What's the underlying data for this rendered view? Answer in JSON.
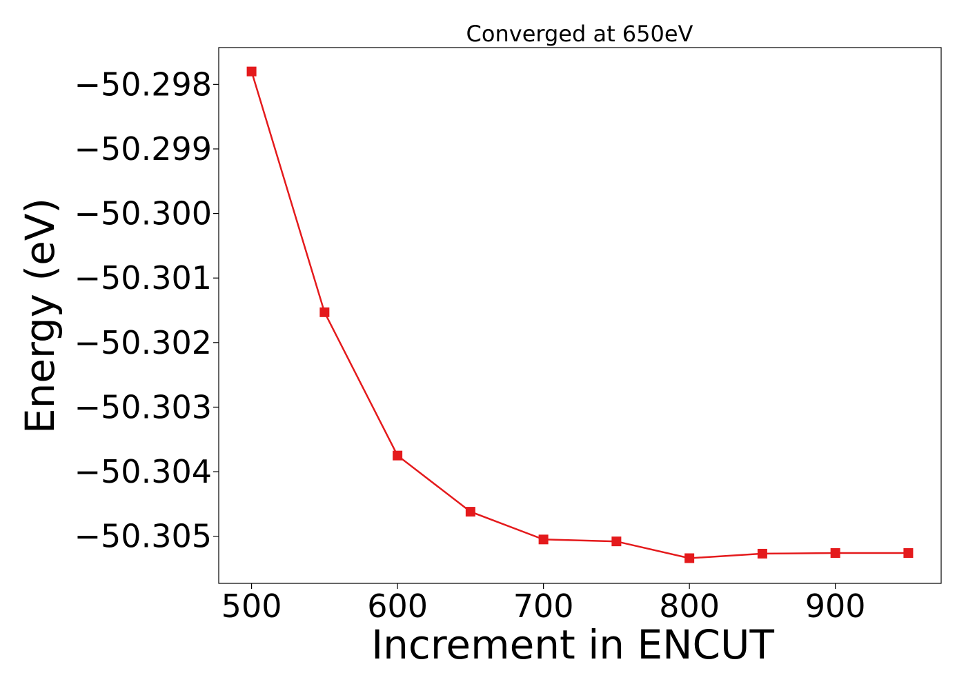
{
  "chart_data": {
    "type": "line",
    "title": "Converged at 650eV",
    "xlabel": "Increment in ENCUT",
    "ylabel": "Energy (eV)",
    "xlim": [
      477.5,
      972.5
    ],
    "ylim": [
      -50.30573,
      -50.29743
    ],
    "xticks": [
      500,
      600,
      700,
      800,
      900
    ],
    "xtick_labels": [
      "500",
      "600",
      "700",
      "800",
      "900"
    ],
    "yticks": [
      -50.298,
      -50.299,
      -50.3,
      -50.301,
      -50.302,
      -50.303,
      -50.304,
      -50.305
    ],
    "ytick_labels": [
      "−50.298",
      "−50.299",
      "−50.300",
      "−50.301",
      "−50.302",
      "−50.303",
      "−50.304",
      "−50.305"
    ],
    "grid": false,
    "series": [
      {
        "color": "#e41a1c",
        "marker": "square",
        "x": [
          500,
          550,
          600,
          650,
          700,
          750,
          800,
          850,
          900,
          950
        ],
        "y": [
          -50.2978,
          -50.30153,
          -50.30375,
          -50.30462,
          -50.30505,
          -50.30508,
          -50.30534,
          -50.30527,
          -50.30526,
          -50.30526
        ]
      }
    ]
  }
}
